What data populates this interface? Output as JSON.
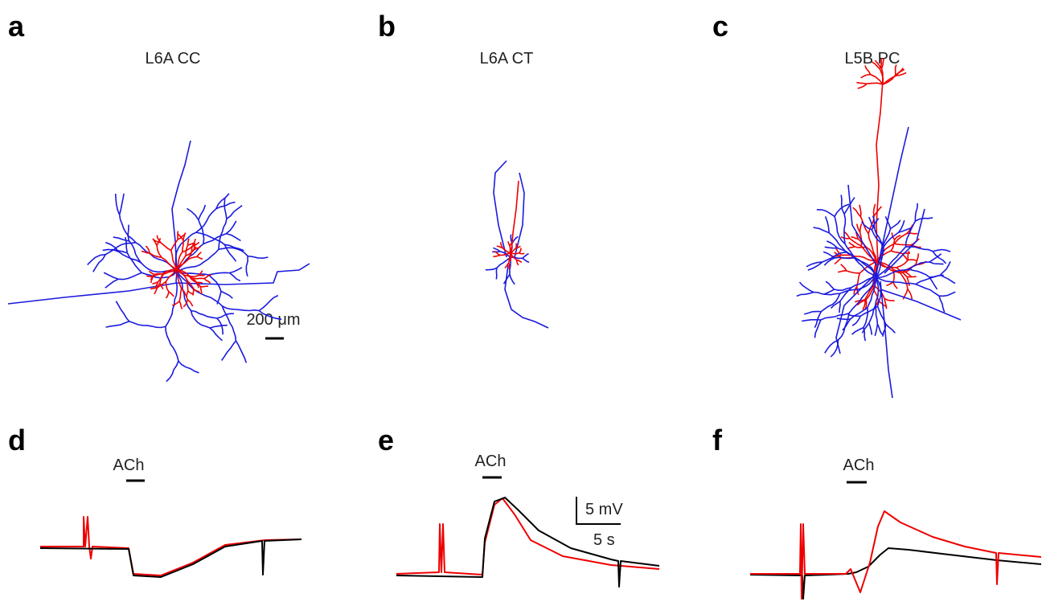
{
  "panels": [
    {
      "letter": "a",
      "title": "L6A CC",
      "scale_bar": "200 μm"
    },
    {
      "letter": "b",
      "title": "L6A CT"
    },
    {
      "letter": "c",
      "title": "L5B PC"
    },
    {
      "letter": "d",
      "drug": "ACh"
    },
    {
      "letter": "e",
      "drug": "ACh",
      "scale_y": "5 mV",
      "scale_x": "5 s"
    },
    {
      "letter": "f",
      "drug": "ACh"
    }
  ]
}
